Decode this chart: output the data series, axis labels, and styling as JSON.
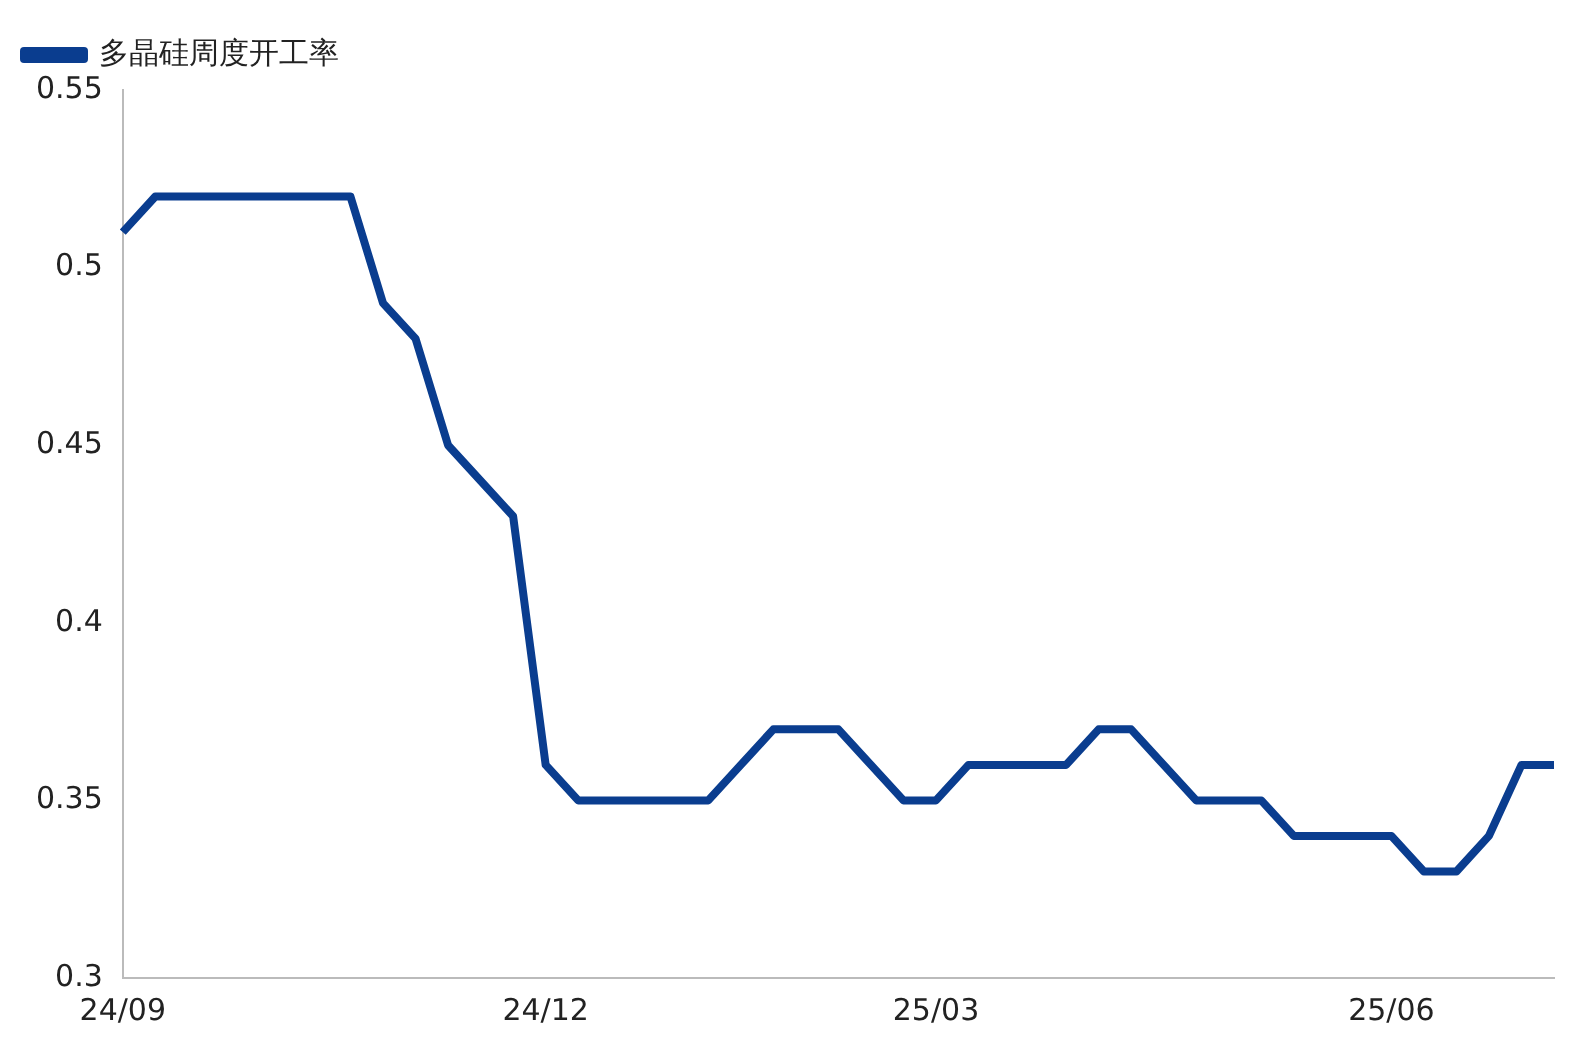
{
  "chart_data": {
    "type": "line",
    "categories": [
      "24/09",
      null,
      null,
      null,
      null,
      null,
      null,
      null,
      null,
      null,
      null,
      null,
      null,
      "24/12",
      null,
      null,
      null,
      null,
      null,
      null,
      null,
      null,
      null,
      null,
      null,
      "25/03",
      null,
      null,
      null,
      null,
      null,
      null,
      null,
      null,
      null,
      null,
      null,
      null,
      null,
      "25/06",
      null,
      null,
      null,
      null,
      null
    ],
    "series": [
      {
        "name": "多晶硅周度开工率",
        "color": "#0a3d8f",
        "values": [
          0.51,
          0.52,
          0.52,
          0.52,
          0.52,
          0.52,
          0.52,
          0.52,
          0.49,
          0.48,
          0.45,
          0.44,
          0.43,
          0.36,
          0.35,
          0.35,
          0.35,
          0.35,
          0.35,
          0.36,
          0.37,
          0.37,
          0.37,
          0.36,
          0.35,
          0.35,
          0.36,
          0.36,
          0.36,
          0.36,
          0.37,
          0.37,
          0.36,
          0.35,
          0.35,
          0.35,
          0.34,
          0.34,
          0.34,
          0.34,
          0.33,
          0.33,
          0.34,
          0.36,
          0.36
        ]
      }
    ],
    "ylim": [
      0.3,
      0.55
    ],
    "yticks": [
      0.3,
      0.35,
      0.4,
      0.45,
      0.5,
      0.55
    ],
    "grid": false,
    "legend": "top left",
    "marker": "none",
    "line_style": "solid"
  }
}
